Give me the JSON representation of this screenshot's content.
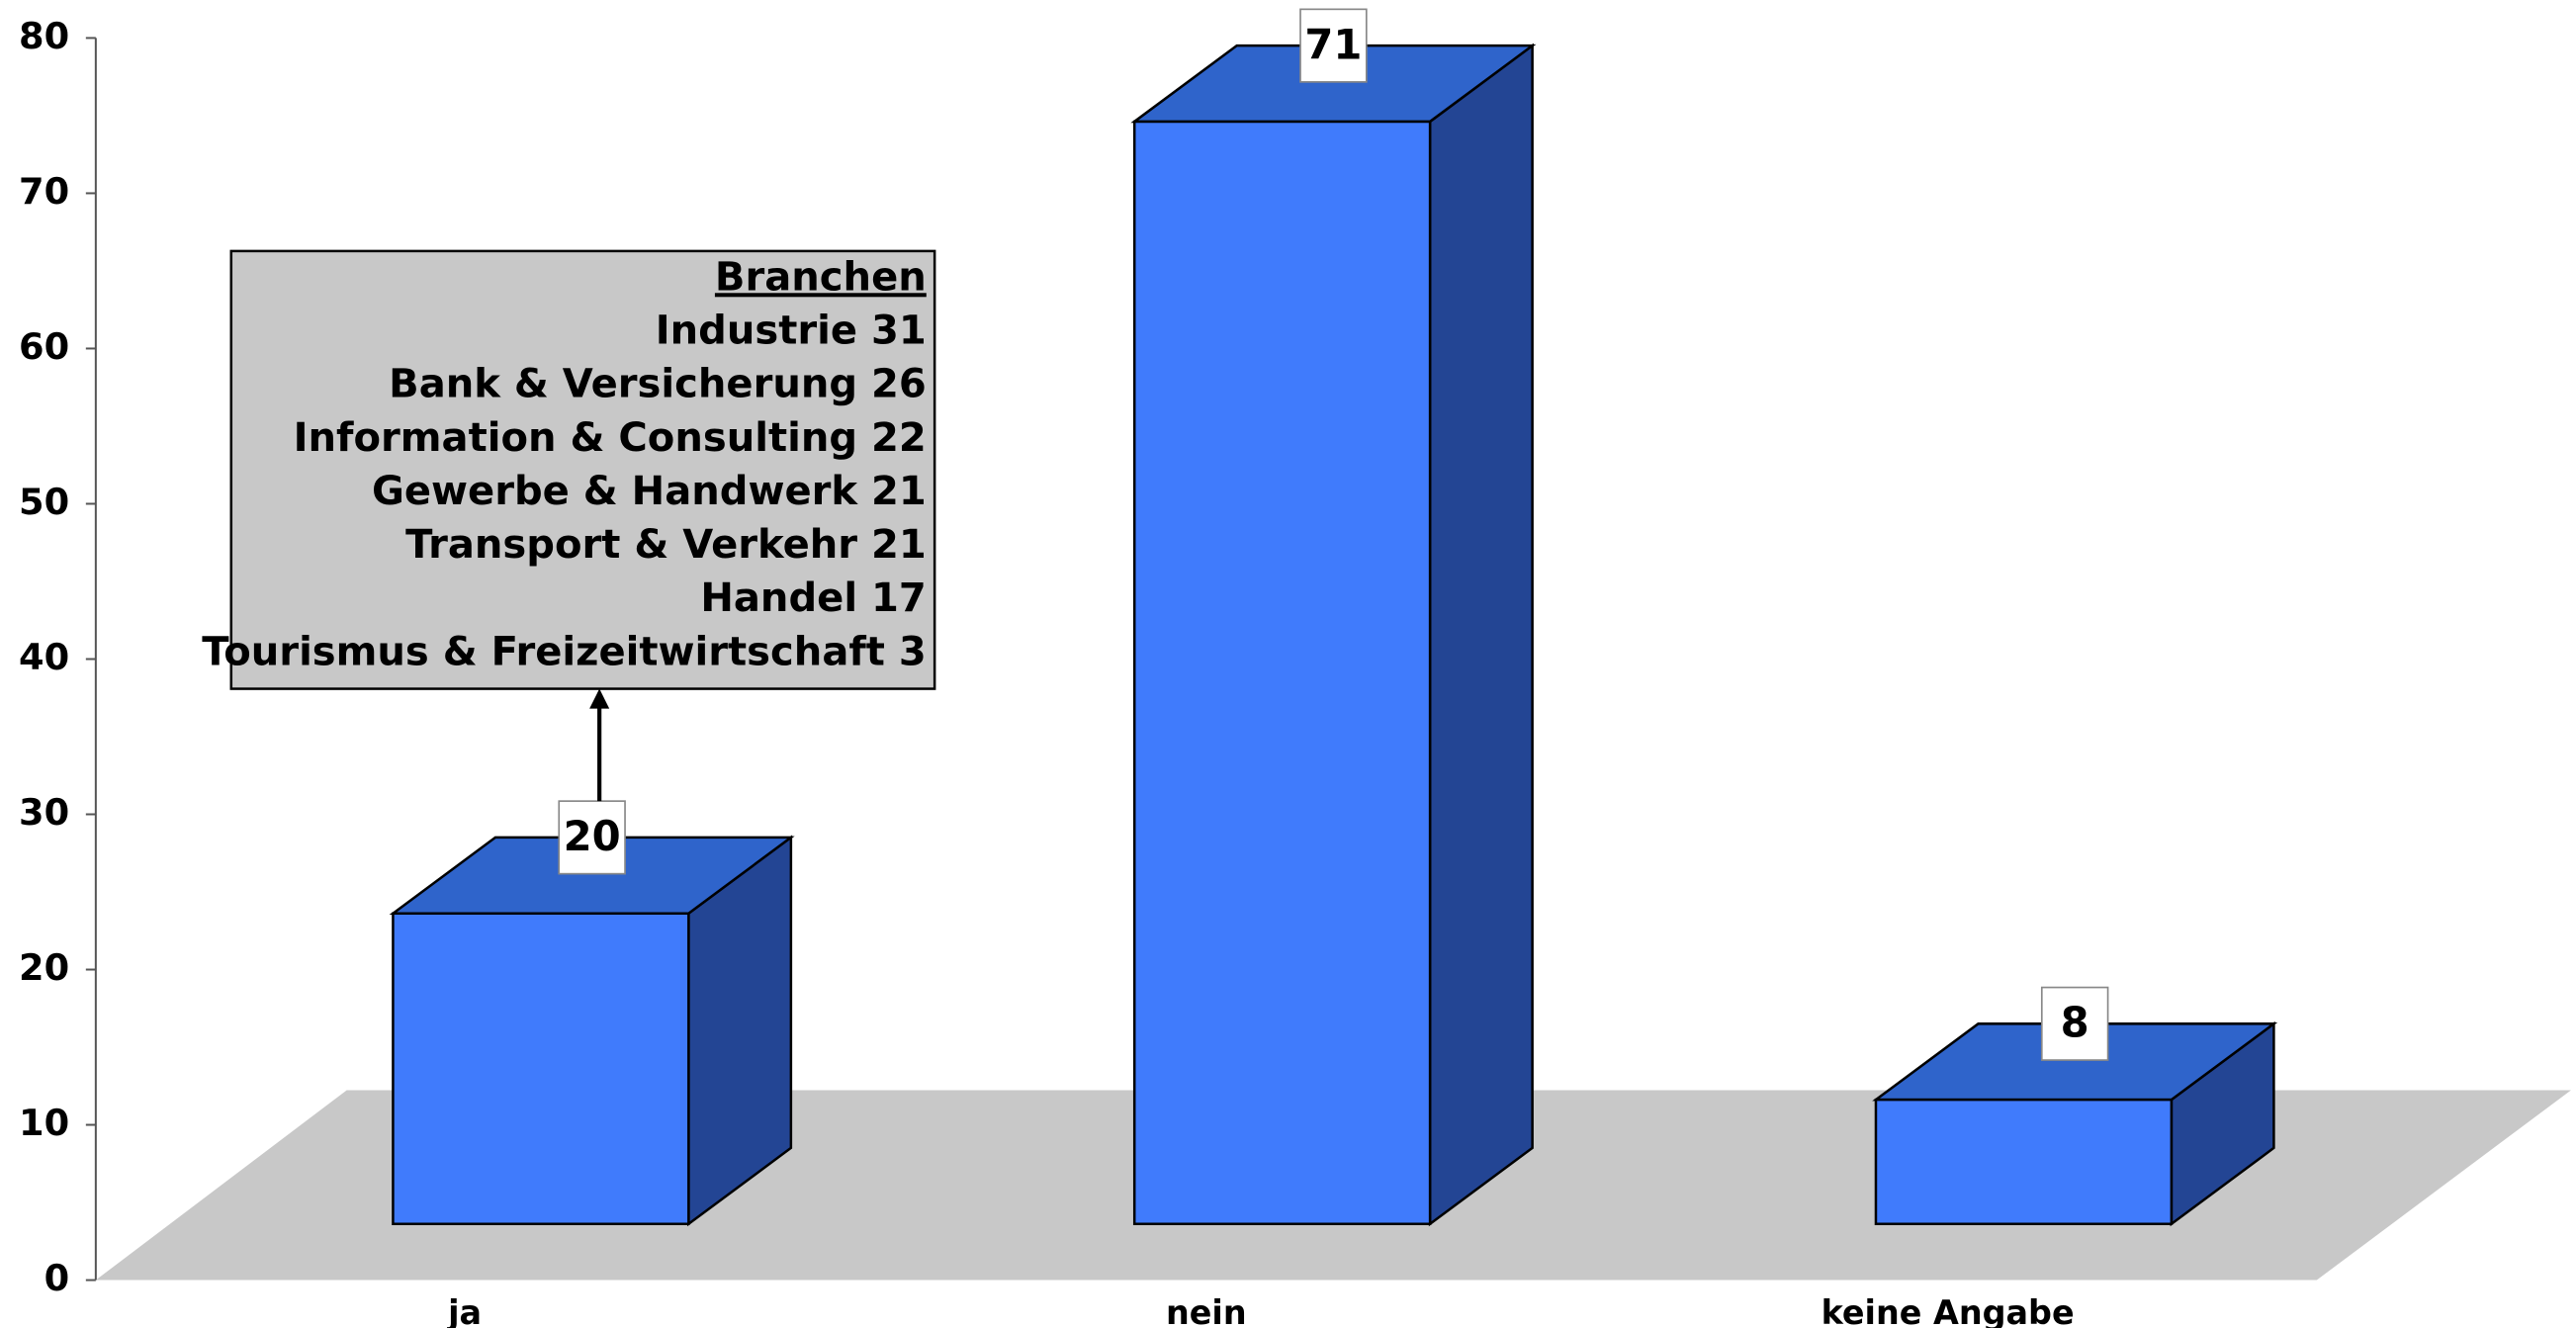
{
  "chart_data": {
    "type": "bar3d",
    "categories": [
      "ja",
      "nein",
      "keine Angabe"
    ],
    "values": [
      20,
      71,
      8
    ],
    "colors": {
      "front": "#407bfc",
      "top": "#2f64cb",
      "side": "#234594",
      "floor": "#c8c8c8"
    },
    "ylim": [
      0,
      80
    ],
    "yticks": [
      0,
      10,
      20,
      30,
      40,
      50,
      60,
      70,
      80
    ],
    "annotation": {
      "title": "Branchen",
      "lines": [
        "Industrie 31",
        "Bank & Versicherung 26",
        "Information & Consulting 22",
        "Gewerbe & Handwerk 21",
        "Transport & Verkehr 21",
        "Handel 17",
        "Tourismus & Freizeitwirtschaft 3"
      ]
    }
  }
}
